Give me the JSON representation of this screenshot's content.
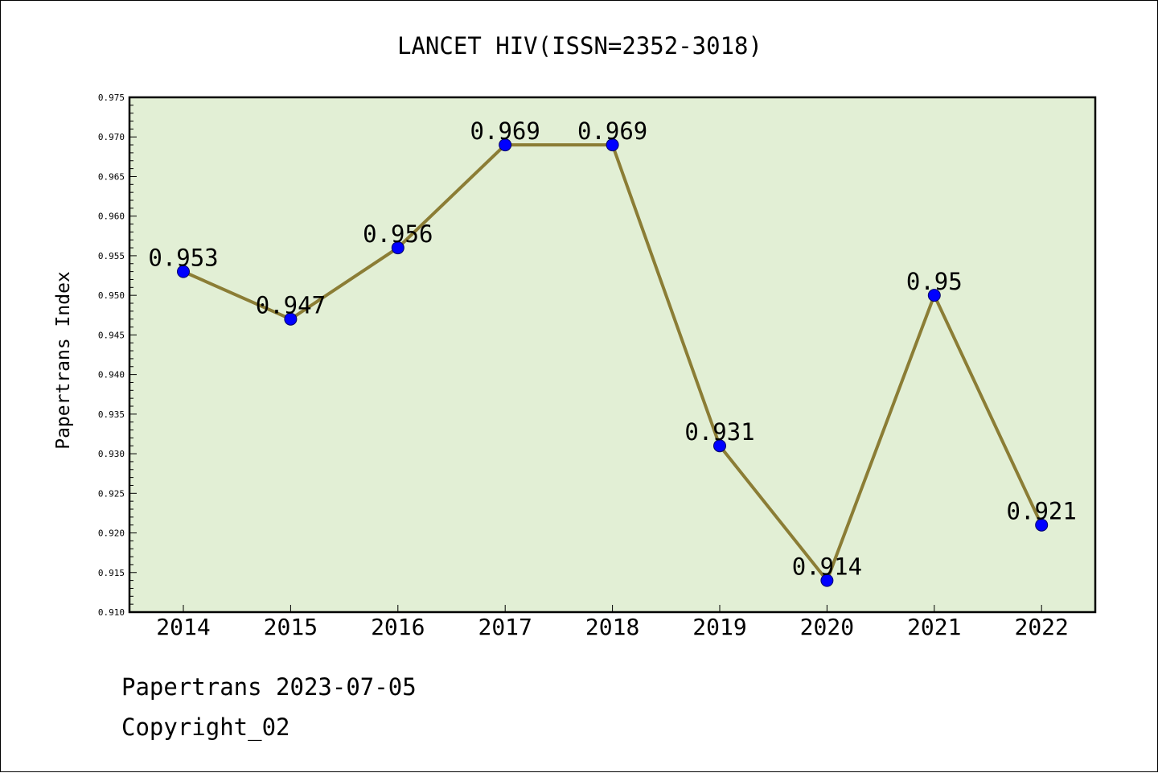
{
  "chart_data": {
    "type": "line",
    "title": "LANCET HIV(ISSN=2352-3018)",
    "ylabel": "Papertrans Index",
    "xlabel": "",
    "x": [
      "2014",
      "2015",
      "2016",
      "2017",
      "2018",
      "2019",
      "2020",
      "2021",
      "2022"
    ],
    "series": [
      {
        "values": [
          0.953,
          0.947,
          0.956,
          0.969,
          0.969,
          0.931,
          0.914,
          0.95,
          0.921
        ],
        "labels": [
          "0.953",
          "0.947",
          "0.956",
          "0.969",
          "0.969",
          "0.931",
          "0.914",
          "0.95",
          "0.921"
        ]
      }
    ],
    "ylim": [
      0.91,
      0.975
    ],
    "yticks": [
      "0.910",
      "0.915",
      "0.920",
      "0.925",
      "0.930",
      "0.935",
      "0.940",
      "0.945",
      "0.950",
      "0.955",
      "0.960",
      "0.965",
      "0.970",
      "0.975"
    ],
    "grid": false,
    "legend": "none",
    "colors": {
      "plot_bg": "#e2efd5",
      "line": "#8b7d35",
      "marker": "#0000ff",
      "marker_edge": "#000066"
    }
  },
  "footer": {
    "line1": "Papertrans 2023-07-05",
    "line2": "Copyright_02"
  }
}
